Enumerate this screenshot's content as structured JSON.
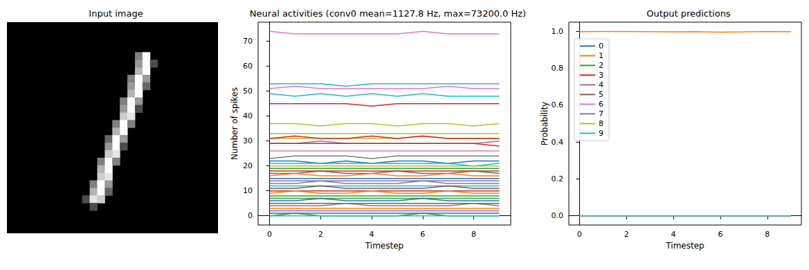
{
  "chart_data": [
    {
      "type": "heatmap",
      "title": "Input image",
      "width": 28,
      "height": 28,
      "value_range": [
        0,
        1
      ],
      "tick_labels": false,
      "pixels": [
        [
          4,
          17,
          0.5
        ],
        [
          4,
          18,
          1.0
        ],
        [
          5,
          17,
          0.6
        ],
        [
          5,
          18,
          1.0
        ],
        [
          5,
          19,
          0.3
        ],
        [
          6,
          17,
          0.7
        ],
        [
          6,
          18,
          1.0
        ],
        [
          7,
          16,
          0.5
        ],
        [
          7,
          17,
          1.0
        ],
        [
          7,
          18,
          0.6
        ],
        [
          8,
          16,
          0.6
        ],
        [
          8,
          17,
          1.0
        ],
        [
          8,
          18,
          0.4
        ],
        [
          9,
          16,
          0.7
        ],
        [
          9,
          17,
          1.0
        ],
        [
          10,
          15,
          0.5
        ],
        [
          10,
          16,
          1.0
        ],
        [
          10,
          17,
          0.6
        ],
        [
          11,
          15,
          0.6
        ],
        [
          11,
          16,
          1.0
        ],
        [
          11,
          17,
          0.3
        ],
        [
          12,
          15,
          0.8
        ],
        [
          12,
          16,
          0.9
        ],
        [
          13,
          14,
          0.5
        ],
        [
          13,
          15,
          1.0
        ],
        [
          13,
          16,
          0.5
        ],
        [
          14,
          14,
          0.7
        ],
        [
          14,
          15,
          1.0
        ],
        [
          15,
          13,
          0.4
        ],
        [
          15,
          14,
          1.0
        ],
        [
          15,
          15,
          0.6
        ],
        [
          16,
          13,
          0.6
        ],
        [
          16,
          14,
          1.0
        ],
        [
          16,
          15,
          0.3
        ],
        [
          17,
          13,
          0.8
        ],
        [
          17,
          14,
          0.9
        ],
        [
          18,
          12,
          0.5
        ],
        [
          18,
          13,
          1.0
        ],
        [
          18,
          14,
          0.5
        ],
        [
          19,
          12,
          0.7
        ],
        [
          19,
          13,
          1.0
        ],
        [
          20,
          12,
          0.8
        ],
        [
          20,
          13,
          0.9
        ],
        [
          21,
          11,
          0.5
        ],
        [
          21,
          12,
          1.0
        ],
        [
          21,
          13,
          0.6
        ],
        [
          22,
          11,
          0.7
        ],
        [
          22,
          12,
          1.0
        ],
        [
          22,
          13,
          0.4
        ],
        [
          23,
          10,
          0.3
        ],
        [
          23,
          11,
          0.9
        ],
        [
          23,
          12,
          0.8
        ],
        [
          24,
          11,
          0.3
        ]
      ]
    },
    {
      "type": "line",
      "title": "Neural activities (conv0 mean=1127.8 Hz, max=73200.0 Hz)",
      "x_label": "Timestep",
      "y_label": "Number of spikes",
      "x": [
        0,
        1,
        2,
        3,
        4,
        5,
        6,
        7,
        8,
        9
      ],
      "xlim": [
        -0.45,
        9.45
      ],
      "xticks": [
        0,
        2,
        4,
        6,
        8
      ],
      "ylim": [
        -3.7,
        77.7
      ],
      "yticks": [
        0,
        10,
        20,
        30,
        40,
        50,
        60,
        70
      ],
      "grid": false,
      "series": [
        {
          "color": "#e377c2",
          "values": [
            74,
            73,
            73,
            73,
            73,
            73,
            74,
            73,
            73,
            73
          ]
        },
        {
          "color": "#17becf",
          "values": [
            53,
            53,
            53,
            52,
            53,
            53,
            53,
            53,
            53,
            53
          ]
        },
        {
          "color": "#e377c2",
          "values": [
            51,
            52,
            51,
            51,
            51,
            51,
            51,
            52,
            51,
            51
          ]
        },
        {
          "color": "#17becf",
          "values": [
            49,
            48,
            49,
            48,
            49,
            48,
            49,
            48,
            48,
            48
          ]
        },
        {
          "color": "#d62728",
          "values": [
            45,
            45,
            45,
            45,
            44,
            45,
            45,
            45,
            45,
            45
          ]
        },
        {
          "color": "#bcbd22",
          "values": [
            37,
            37,
            36,
            37,
            37,
            36,
            37,
            37,
            36,
            37
          ]
        },
        {
          "color": "#bcbd22",
          "values": [
            33,
            33,
            33,
            33,
            33,
            33,
            33,
            33,
            33,
            33
          ]
        },
        {
          "color": "#bcbd22",
          "values": [
            31,
            31,
            31,
            31,
            31,
            31,
            32,
            31,
            31,
            31
          ]
        },
        {
          "color": "#d62728",
          "values": [
            31,
            32,
            31,
            31,
            32,
            31,
            32,
            31,
            31,
            31
          ]
        },
        {
          "color": "#9467bd",
          "values": [
            29,
            29,
            30,
            29,
            29,
            29,
            29,
            29,
            29,
            30
          ]
        },
        {
          "color": "#d62728",
          "values": [
            29,
            29,
            29,
            29,
            29,
            29,
            29,
            29,
            29,
            28
          ]
        },
        {
          "color": "#e377c2",
          "values": [
            26,
            26,
            26,
            26,
            26,
            26,
            26,
            26,
            26,
            26
          ]
        },
        {
          "color": "#7f7f7f",
          "values": [
            23,
            24,
            24,
            24,
            23,
            24,
            24,
            24,
            24,
            24
          ]
        },
        {
          "color": "#1f77b4",
          "values": [
            22,
            22,
            21,
            22,
            21,
            22,
            22,
            21,
            22,
            22
          ]
        },
        {
          "color": "#17becf",
          "values": [
            21,
            21,
            21,
            21,
            21,
            21,
            21,
            21,
            20,
            21
          ]
        },
        {
          "color": "#bcbd22",
          "values": [
            20,
            20,
            20,
            20,
            20,
            20,
            20,
            20,
            20,
            20
          ]
        },
        {
          "color": "#2ca02c",
          "values": [
            19,
            19,
            19,
            19,
            19,
            19,
            19,
            19,
            19,
            19
          ]
        },
        {
          "color": "#d62728",
          "values": [
            18,
            18,
            18,
            18,
            18,
            18,
            18,
            18,
            18,
            18
          ]
        },
        {
          "color": "#8c564b",
          "values": [
            17,
            17,
            18,
            17,
            17,
            18,
            17,
            17,
            18,
            17
          ]
        },
        {
          "color": "#ff7f0e",
          "values": [
            16,
            17,
            16,
            16,
            17,
            16,
            16,
            17,
            16,
            16
          ]
        },
        {
          "color": "#1f77b4",
          "values": [
            15,
            15,
            15,
            15,
            15,
            15,
            15,
            15,
            15,
            15
          ]
        },
        {
          "color": "#9467bd",
          "values": [
            14,
            14,
            14,
            14,
            14,
            14,
            14,
            14,
            14,
            14
          ]
        },
        {
          "color": "#7f7f7f",
          "values": [
            13,
            13,
            14,
            13,
            13,
            13,
            14,
            13,
            13,
            13
          ]
        },
        {
          "color": "#17becf",
          "values": [
            12,
            12,
            12,
            12,
            12,
            12,
            12,
            12,
            12,
            12
          ]
        },
        {
          "color": "#8c564b",
          "values": [
            11,
            11,
            12,
            11,
            11,
            11,
            11,
            12,
            11,
            11
          ]
        },
        {
          "color": "#d62728",
          "values": [
            10,
            10,
            10,
            10,
            10,
            10,
            10,
            10,
            10,
            10
          ]
        },
        {
          "color": "#ff7f0e",
          "values": [
            9,
            10,
            9,
            9,
            10,
            9,
            9,
            10,
            9,
            9
          ]
        },
        {
          "color": "#2ca02c",
          "values": [
            8,
            8,
            8,
            8,
            8,
            8,
            8,
            8,
            8,
            8
          ]
        },
        {
          "color": "#2ca02c",
          "values": [
            7,
            7,
            7,
            7,
            7,
            7,
            7,
            7,
            7,
            7
          ]
        },
        {
          "color": "#1f77b4",
          "values": [
            6,
            6,
            7,
            6,
            6,
            6,
            7,
            6,
            6,
            6
          ]
        },
        {
          "color": "#8c564b",
          "values": [
            5,
            5,
            5,
            5,
            5,
            5,
            5,
            5,
            5,
            5
          ]
        },
        {
          "color": "#7f7f7f",
          "values": [
            4,
            4,
            4,
            5,
            4,
            4,
            4,
            4,
            5,
            4
          ]
        },
        {
          "color": "#ff7f0e",
          "values": [
            3,
            3,
            3,
            3,
            3,
            3,
            3,
            3,
            3,
            3
          ]
        },
        {
          "color": "#9467bd",
          "values": [
            2,
            2,
            2,
            2,
            2,
            2,
            2,
            2,
            2,
            2
          ]
        },
        {
          "color": "#1f77b4",
          "values": [
            1,
            1,
            1,
            1,
            1,
            1,
            1,
            1,
            1,
            1
          ]
        },
        {
          "color": "#2ca02c",
          "values": [
            0,
            1,
            0,
            0,
            0,
            0,
            1,
            0,
            0,
            0
          ]
        },
        {
          "color": "#17becf",
          "values": [
            0,
            0,
            0,
            0,
            0,
            0,
            0,
            0,
            0,
            0
          ]
        }
      ]
    },
    {
      "type": "line",
      "title": "Output predictions",
      "x_label": "Timestep",
      "y_label": "Probability",
      "x": [
        0,
        1,
        2,
        3,
        4,
        5,
        6,
        7,
        8,
        9
      ],
      "xlim": [
        -0.45,
        9.45
      ],
      "xticks": [
        0,
        2,
        4,
        6,
        8
      ],
      "ylim": [
        -0.05,
        1.05
      ],
      "yticks": [
        {
          "value": 0,
          "label": "0.0"
        },
        {
          "value": 0.2,
          "label": "0.2"
        },
        {
          "value": 0.4,
          "label": "0.4"
        },
        {
          "value": 0.6,
          "label": "0.6"
        },
        {
          "value": 0.8,
          "label": "0.8"
        },
        {
          "value": 1,
          "label": "1.0"
        }
      ],
      "grid": false,
      "legend": "upper left",
      "series": [
        {
          "name": "0",
          "color": "#1f77b4",
          "values": [
            0,
            0,
            0,
            0,
            0,
            0,
            0,
            0,
            0,
            0
          ]
        },
        {
          "name": "1",
          "color": "#ff7f0e",
          "values": [
            0.998,
            0.999,
            0.999,
            0.998,
            0.997,
            0.998,
            0.996,
            0.997,
            0.999,
            0.998
          ]
        },
        {
          "name": "2",
          "color": "#2ca02c",
          "values": [
            0,
            0,
            0,
            0,
            0,
            0,
            0,
            0,
            0,
            0
          ]
        },
        {
          "name": "3",
          "color": "#d62728",
          "values": [
            0,
            0,
            0,
            0,
            0,
            0,
            0,
            0,
            0,
            0
          ]
        },
        {
          "name": "4",
          "color": "#9467bd",
          "values": [
            0,
            0,
            0,
            0,
            0,
            0,
            0,
            0,
            0,
            0
          ]
        },
        {
          "name": "5",
          "color": "#8c564b",
          "values": [
            0,
            0,
            0,
            0,
            0,
            0,
            0,
            0,
            0,
            0
          ]
        },
        {
          "name": "6",
          "color": "#e377c2",
          "values": [
            0,
            0,
            0,
            0,
            0,
            0,
            0,
            0,
            0,
            0
          ]
        },
        {
          "name": "7",
          "color": "#7f7f7f",
          "values": [
            0,
            0,
            0,
            0,
            0,
            0,
            0,
            0,
            0,
            0
          ]
        },
        {
          "name": "8",
          "color": "#bcbd22",
          "values": [
            0,
            0,
            0,
            0,
            0,
            0,
            0,
            0,
            0,
            0
          ]
        },
        {
          "name": "9",
          "color": "#17becf",
          "values": [
            0,
            0,
            0,
            0,
            0,
            0,
            0,
            0,
            0,
            0
          ]
        }
      ]
    }
  ]
}
